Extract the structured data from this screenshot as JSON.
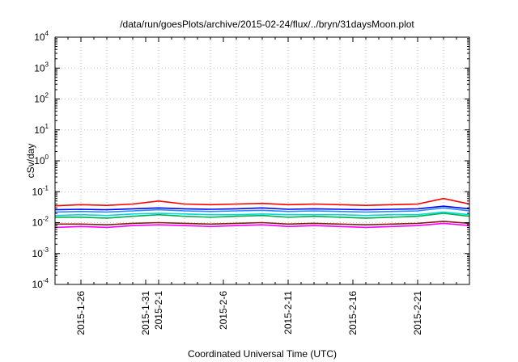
{
  "chart_data": {
    "type": "line",
    "title": "/data/run/goesPlots/archive/2015-02-24/flux/../bryn/31daysMoon.plot",
    "xlabel": "Coordinated Universal Time (UTC)",
    "ylabel": "cSv/day",
    "y_scale": "log",
    "ylim": [
      0.0001,
      10000
    ],
    "xlim": [
      "2015-01-24",
      "2015-02-25"
    ],
    "grid": true,
    "y_ticks": [
      {
        "base": "10",
        "exp": "-4"
      },
      {
        "base": "10",
        "exp": "-3"
      },
      {
        "base": "10",
        "exp": "-2"
      },
      {
        "base": "10",
        "exp": "-1"
      },
      {
        "base": "10",
        "exp": "0"
      },
      {
        "base": "10",
        "exp": "1"
      },
      {
        "base": "10",
        "exp": "2"
      },
      {
        "base": "10",
        "exp": "3"
      },
      {
        "base": "10",
        "exp": "4"
      }
    ],
    "x_ticks": [
      "2015-1-26",
      "2015-1-31",
      "2015-2-1",
      "2015-2-6",
      "2015-2-11",
      "2015-2-16",
      "2015-2-21"
    ],
    "x_tick_dates": [
      "2015-01-26",
      "2015-01-31",
      "2015-02-01",
      "2015-02-06",
      "2015-02-11",
      "2015-02-16",
      "2015-02-21"
    ],
    "x_dates": [
      "2015-01-24",
      "2015-01-26",
      "2015-01-28",
      "2015-01-30",
      "2015-02-01",
      "2015-02-03",
      "2015-02-05",
      "2015-02-07",
      "2015-02-09",
      "2015-02-11",
      "2015-02-13",
      "2015-02-15",
      "2015-02-17",
      "2015-02-19",
      "2015-02-21",
      "2015-02-23",
      "2015-02-25"
    ],
    "series": [
      {
        "color": "#ff0000",
        "values": [
          0.035,
          0.038,
          0.036,
          0.04,
          0.05,
          0.04,
          0.038,
          0.04,
          0.042,
          0.038,
          0.04,
          0.038,
          0.036,
          0.038,
          0.04,
          0.06,
          0.04
        ]
      },
      {
        "color": "#0000ff",
        "values": [
          0.026,
          0.027,
          0.026,
          0.028,
          0.03,
          0.028,
          0.027,
          0.028,
          0.03,
          0.027,
          0.028,
          0.027,
          0.026,
          0.027,
          0.028,
          0.034,
          0.028
        ]
      },
      {
        "color": "#2a8cff",
        "values": [
          0.022,
          0.023,
          0.022,
          0.024,
          0.026,
          0.024,
          0.023,
          0.024,
          0.025,
          0.023,
          0.024,
          0.023,
          0.022,
          0.023,
          0.024,
          0.03,
          0.024
        ]
      },
      {
        "color": "#00b050",
        "values": [
          0.015,
          0.015,
          0.014,
          0.016,
          0.018,
          0.016,
          0.015,
          0.016,
          0.017,
          0.015,
          0.016,
          0.015,
          0.014,
          0.015,
          0.016,
          0.02,
          0.016
        ]
      },
      {
        "color": "#00d8d8",
        "values": [
          0.017,
          0.018,
          0.017,
          0.019,
          0.02,
          0.019,
          0.018,
          0.018,
          0.019,
          0.018,
          0.018,
          0.018,
          0.017,
          0.018,
          0.018,
          0.022,
          0.018
        ]
      },
      {
        "color": "#8b1a1a",
        "values": [
          0.009,
          0.009,
          0.0085,
          0.0095,
          0.01,
          0.0095,
          0.009,
          0.0095,
          0.01,
          0.009,
          0.0095,
          0.009,
          0.0085,
          0.009,
          0.0095,
          0.011,
          0.0095
        ]
      },
      {
        "color": "#ff00ff",
        "values": [
          0.007,
          0.0075,
          0.007,
          0.008,
          0.0085,
          0.008,
          0.0075,
          0.008,
          0.0085,
          0.0075,
          0.008,
          0.0075,
          0.007,
          0.0075,
          0.008,
          0.0095,
          0.008
        ]
      }
    ]
  }
}
